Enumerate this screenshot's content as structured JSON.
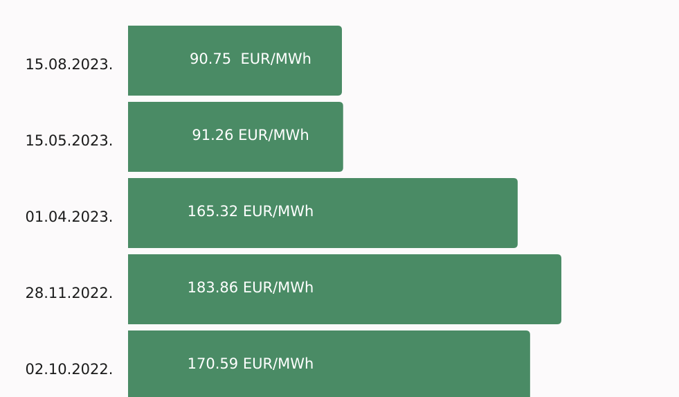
{
  "chart_data": {
    "type": "bar",
    "orientation": "horizontal",
    "categories": [
      "15.08.2023.",
      "15.05.2023.",
      "01.04.2023.",
      "28.11.2022.",
      "02.10.2022."
    ],
    "values": [
      90.75,
      91.26,
      165.32,
      183.86,
      170.59
    ],
    "value_labels": [
      "90.75  EUR/MWh",
      "91.26 EUR/MWh",
      "165.32 EUR/MWh",
      "183.86 EUR/MWh",
      "170.59 EUR/MWh"
    ],
    "color": "#4a8b65"
  }
}
